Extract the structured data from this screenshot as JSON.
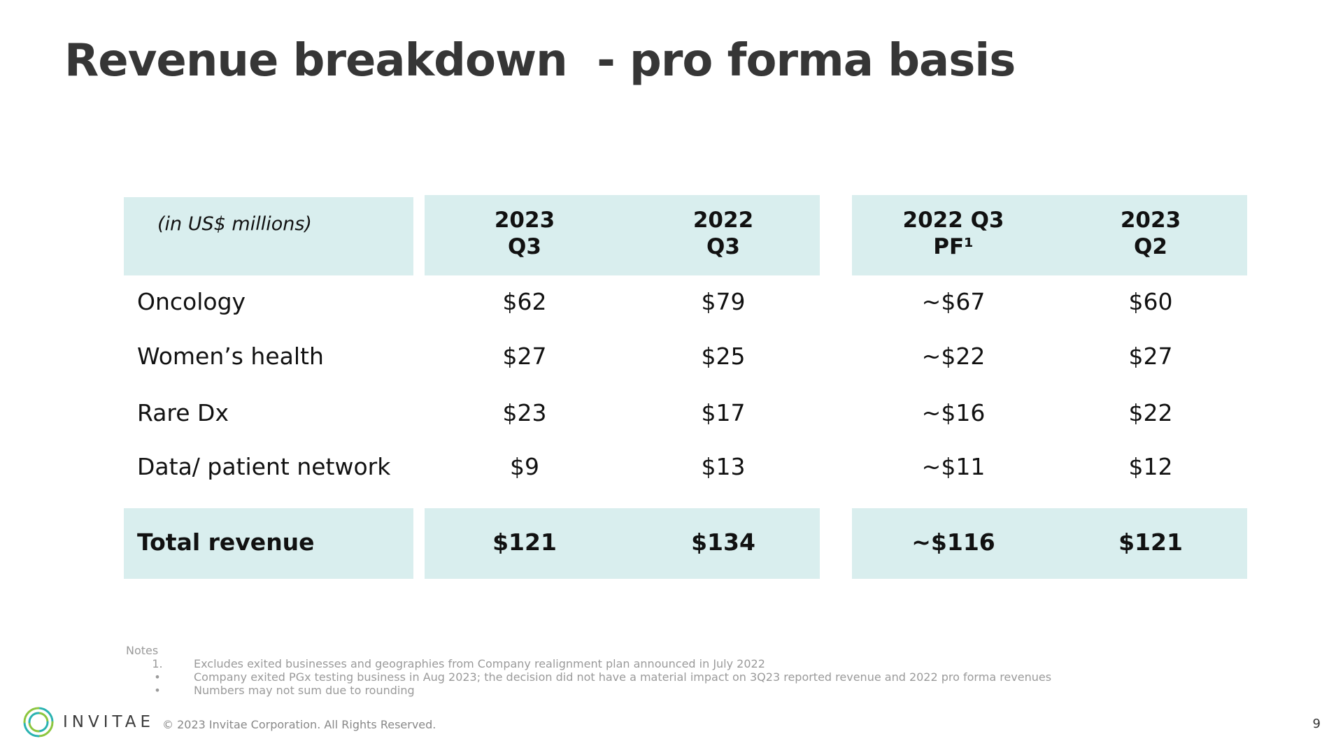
{
  "title": "Revenue breakdown  - pro forma basis",
  "table": {
    "unit_label": "(in US$ millions)",
    "columns": [
      {
        "line1": "2023",
        "line2": "Q3"
      },
      {
        "line1": "2022",
        "line2": "Q3"
      },
      {
        "line1": "2022 Q3",
        "line2": "PF¹"
      },
      {
        "line1": "2023",
        "line2": "Q2"
      }
    ],
    "rows": [
      {
        "label": "Oncology",
        "values": [
          "$62",
          "$79",
          "~$67",
          "$60"
        ]
      },
      {
        "label": "Women’s health",
        "values": [
          "$27",
          "$25",
          "~$22",
          "$27"
        ]
      },
      {
        "label": "Rare Dx",
        "values": [
          "$23",
          "$17",
          "~$16",
          "$22"
        ]
      },
      {
        "label": "Data/ patient network",
        "values": [
          "$9",
          "$13",
          "~$11",
          "$12"
        ]
      }
    ],
    "total": {
      "label": "Total revenue",
      "values": [
        "$121",
        "$134",
        "~$116",
        "$121"
      ]
    }
  },
  "notes": {
    "heading": "Notes",
    "items": [
      {
        "marker": "1.",
        "text": "Excludes exited businesses and geographies from Company realignment plan announced in July 2022"
      },
      {
        "marker": "•",
        "text": "Company exited PGx testing business in Aug 2023; the decision did not have a material impact on 3Q23 reported revenue and 2022 pro forma revenues"
      },
      {
        "marker": "•",
        "text": "Numbers may not sum due to rounding"
      }
    ]
  },
  "footer": {
    "brand": "INVITAE",
    "copyright": "© 2023 Invitae Corporation. All Rights Reserved.",
    "page_number": "9"
  },
  "colors": {
    "band": "#d9eeee",
    "title": "#363636",
    "logo_teal": "#2ab3b1",
    "logo_green": "#8cc63f"
  }
}
